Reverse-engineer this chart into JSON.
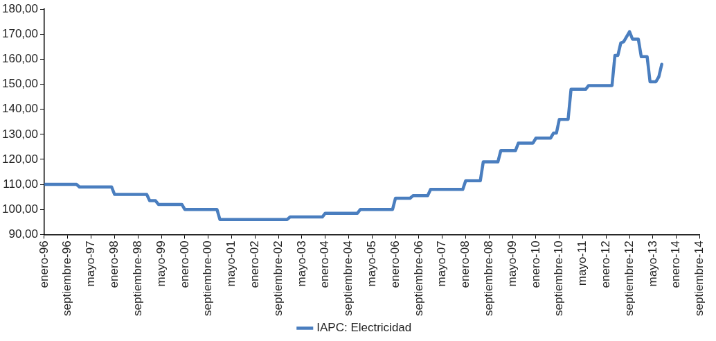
{
  "chart_data": {
    "type": "line",
    "legend": "bottom",
    "marker": "none",
    "line_style": "solid",
    "xlim": [
      "1996-01",
      "2014-09"
    ],
    "xticks": [
      {
        "value": "1996-01",
        "label": "enero-96"
      },
      {
        "value": "1996-09",
        "label": "septiembre-96"
      },
      {
        "value": "1997-05",
        "label": "mayo-97"
      },
      {
        "value": "1998-01",
        "label": "enero-98"
      },
      {
        "value": "1998-09",
        "label": "septiembre-98"
      },
      {
        "value": "1999-05",
        "label": "mayo-99"
      },
      {
        "value": "2000-01",
        "label": "enero-00"
      },
      {
        "value": "2000-09",
        "label": "septiembre-00"
      },
      {
        "value": "2001-05",
        "label": "mayo-01"
      },
      {
        "value": "2002-01",
        "label": "enero-02"
      },
      {
        "value": "2002-09",
        "label": "septiembre-02"
      },
      {
        "value": "2003-05",
        "label": "mayo-03"
      },
      {
        "value": "2004-01",
        "label": "enero-04"
      },
      {
        "value": "2004-09",
        "label": "septiembre-04"
      },
      {
        "value": "2005-05",
        "label": "mayo-05"
      },
      {
        "value": "2006-01",
        "label": "enero-06"
      },
      {
        "value": "2006-09",
        "label": "septiembre-06"
      },
      {
        "value": "2007-05",
        "label": "mayo-07"
      },
      {
        "value": "2008-01",
        "label": "enero-08"
      },
      {
        "value": "2008-09",
        "label": "septiembre-08"
      },
      {
        "value": "2009-05",
        "label": "mayo-09"
      },
      {
        "value": "2010-01",
        "label": "enero-10"
      },
      {
        "value": "2010-09",
        "label": "septiembre-10"
      },
      {
        "value": "2011-05",
        "label": "mayo-11"
      },
      {
        "value": "2012-01",
        "label": "enero-12"
      },
      {
        "value": "2012-09",
        "label": "septiembre-12"
      },
      {
        "value": "2013-05",
        "label": "mayo-13"
      },
      {
        "value": "2014-01",
        "label": "enero-14"
      },
      {
        "value": "2014-09",
        "label": "septiembre-14"
      }
    ],
    "ylim": [
      90,
      180
    ],
    "yticks": [
      {
        "value": 90,
        "label": "90,00"
      },
      {
        "value": 100,
        "label": "100,00"
      },
      {
        "value": 110,
        "label": "110,00"
      },
      {
        "value": 120,
        "label": "120,00"
      },
      {
        "value": 130,
        "label": "130,00"
      },
      {
        "value": 140,
        "label": "140,00"
      },
      {
        "value": 150,
        "label": "150,00"
      },
      {
        "value": 160,
        "label": "160,00"
      },
      {
        "value": 170,
        "label": "170,00"
      },
      {
        "value": 180,
        "label": "180,00"
      }
    ],
    "x": [
      "1996-01",
      "1996-12",
      "1997-01",
      "1997-12",
      "1998-01",
      "1998-12",
      "1999-01",
      "1999-03",
      "1999-04",
      "1999-12",
      "2000-01",
      "2000-12",
      "2001-01",
      "2002-12",
      "2003-01",
      "2003-12",
      "2004-01",
      "2004-12",
      "2005-01",
      "2005-12",
      "2006-01",
      "2006-06",
      "2006-07",
      "2006-12",
      "2007-01",
      "2007-12",
      "2008-01",
      "2008-06",
      "2008-07",
      "2008-12",
      "2009-01",
      "2009-06",
      "2009-07",
      "2009-12",
      "2010-01",
      "2010-06",
      "2010-07",
      "2010-08",
      "2010-09",
      "2010-12",
      "2011-01",
      "2011-06",
      "2011-07",
      "2012-03",
      "2012-04",
      "2012-05",
      "2012-06",
      "2012-07",
      "2012-09",
      "2012-10",
      "2012-12",
      "2013-01",
      "2013-03",
      "2013-04",
      "2013-06",
      "2013-07",
      "2013-08"
    ],
    "series": [
      {
        "name": "IAPC: Electricidad",
        "color": "#4a7ebf",
        "values": [
          110,
          110,
          109,
          109,
          106,
          106,
          103.5,
          103.5,
          102,
          102,
          100,
          100,
          96,
          96,
          97,
          97,
          98.5,
          98.5,
          100,
          100,
          104.5,
          104.5,
          105.5,
          105.5,
          108,
          108,
          111.5,
          111.5,
          119,
          119,
          123.5,
          123.5,
          126.5,
          126.5,
          128.5,
          128.5,
          130.5,
          130.5,
          136,
          136,
          148,
          148,
          149.5,
          149.5,
          161.5,
          161.5,
          166.5,
          167,
          171,
          168,
          168,
          161,
          161,
          151,
          151,
          153,
          158
        ]
      }
    ]
  }
}
